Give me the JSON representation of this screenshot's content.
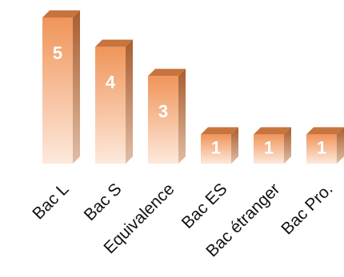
{
  "chart_data": {
    "type": "bar",
    "style": "3d-column",
    "categories": [
      "Bac L",
      "Bac S",
      "Equivalence",
      "Bac ES",
      "Bac étranger",
      "Bac Pro."
    ],
    "values": [
      5,
      4,
      3,
      1,
      1,
      1
    ],
    "data_labels": [
      "5",
      "4",
      "3",
      "1",
      "1",
      "1"
    ],
    "ylim": [
      0,
      5
    ],
    "grid": false,
    "legend": "none",
    "colors": {
      "front_top": "#f0955a",
      "front_bottom": "#fde9dc",
      "side_top": "#a85d2f",
      "side_bottom": "#e0bea6",
      "top_face": "#c7743f",
      "label_text": "#ffffff",
      "tick_text": "#111111"
    }
  }
}
